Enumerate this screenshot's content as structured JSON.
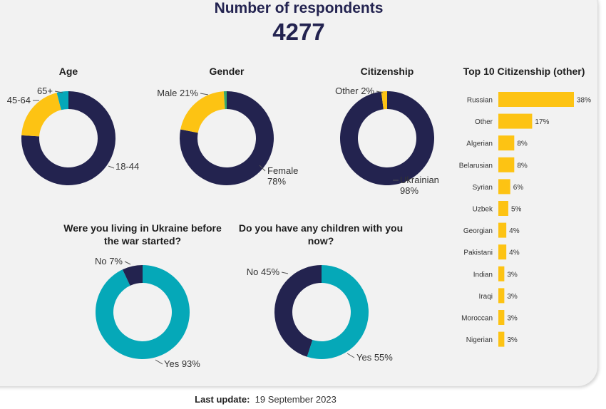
{
  "header": {
    "title": "Number of respondents",
    "value": "4277"
  },
  "footer": {
    "label": "Last update:",
    "value": "19 September 2023"
  },
  "colors": {
    "navy": "#23234f",
    "yellow": "#fdc313",
    "teal": "#05a8b8",
    "green": "#3aa86a",
    "text": "#333333"
  },
  "chart_data": [
    {
      "type": "pie",
      "title": "Age",
      "slices": [
        {
          "label": "18-44",
          "value": 76,
          "color": "#23234f"
        },
        {
          "label": "45-64",
          "value": 20,
          "color": "#fdc313"
        },
        {
          "label": "65+",
          "value": 4,
          "color": "#05a8b8"
        }
      ]
    },
    {
      "type": "pie",
      "title": "Gender",
      "slices": [
        {
          "label": "Female",
          "value": 78,
          "display": "Female\n78%",
          "color": "#23234f"
        },
        {
          "label": "Male",
          "value": 21,
          "display": "Male 21%",
          "color": "#fdc313"
        },
        {
          "label": "",
          "value": 1,
          "color": "#3aa86a"
        }
      ]
    },
    {
      "type": "pie",
      "title": "Citizenship",
      "slices": [
        {
          "label": "Ukrainian",
          "value": 98,
          "display": "Ukrainian\n98%",
          "color": "#23234f"
        },
        {
          "label": "Other",
          "value": 2,
          "display": "Other 2%",
          "color": "#fdc313"
        }
      ]
    },
    {
      "type": "bar",
      "title": "Top 10 Citizenship (other)",
      "categories": [
        "Russian",
        "Other",
        "Algerian",
        "Belarusian",
        "Syrian",
        "Uzbek",
        "Georgian",
        "Pakistani",
        "Indian",
        "Iraqi",
        "Moroccan",
        "Nigerian"
      ],
      "values": [
        38,
        17,
        8,
        8,
        6,
        5,
        4,
        4,
        3,
        3,
        3,
        3
      ],
      "value_suffix": "%",
      "orientation": "horizontal",
      "color": "#fdc313"
    },
    {
      "type": "pie",
      "title": "Were you living in Ukraine before the war started?",
      "slices": [
        {
          "label": "Yes",
          "value": 93,
          "display": "Yes 93%",
          "color": "#05a8b8"
        },
        {
          "label": "No",
          "value": 7,
          "display": "No 7%",
          "color": "#23234f"
        }
      ]
    },
    {
      "type": "pie",
      "title": "Do you have any children with you now?",
      "slices": [
        {
          "label": "Yes",
          "value": 55,
          "display": "Yes 55%",
          "color": "#05a8b8"
        },
        {
          "label": "No",
          "value": 45,
          "display": "No 45%",
          "color": "#23234f"
        }
      ]
    }
  ]
}
